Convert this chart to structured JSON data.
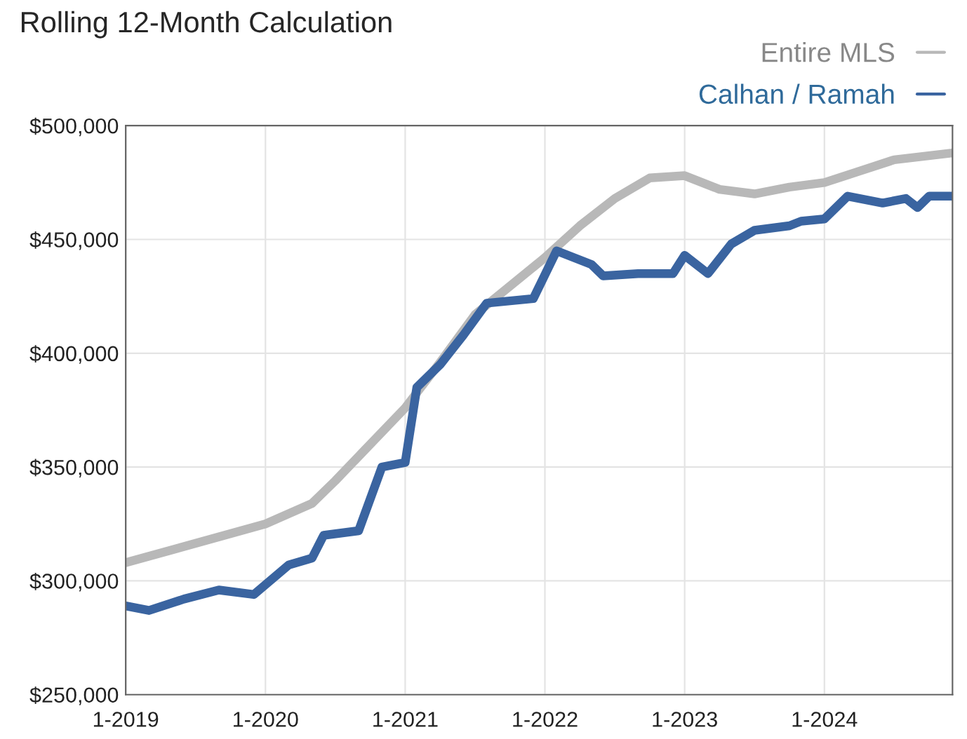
{
  "chart_data": {
    "type": "line",
    "title": "Rolling 12-Month Calculation",
    "series": [
      {
        "name": "Entire MLS",
        "color": "#b8b8b8",
        "x": [
          "2019-01",
          "2020-01",
          "2020-05",
          "2020-07",
          "2021-01",
          "2021-04",
          "2021-07",
          "2022-01",
          "2022-04",
          "2022-07",
          "2022-10",
          "2023-01",
          "2023-04",
          "2023-07",
          "2023-10",
          "2024-01",
          "2024-04",
          "2024-07",
          "2024-12"
        ],
        "values": [
          308000,
          325000,
          334000,
          344000,
          376000,
          396000,
          417000,
          442000,
          456000,
          468000,
          477000,
          478000,
          472000,
          470000,
          473000,
          475000,
          480000,
          485000,
          488000
        ]
      },
      {
        "name": "Calhan / Ramah",
        "color": "#3a64a0",
        "x": [
          "2019-01",
          "2019-03",
          "2019-06",
          "2019-09",
          "2019-12",
          "2020-03",
          "2020-05",
          "2020-06",
          "2020-09",
          "2020-11",
          "2021-01",
          "2021-02",
          "2021-04",
          "2021-06",
          "2021-08",
          "2021-12",
          "2022-02",
          "2022-05",
          "2022-06",
          "2022-09",
          "2022-12",
          "2023-01",
          "2023-03",
          "2023-05",
          "2023-07",
          "2023-10",
          "2023-11",
          "2024-01",
          "2024-03",
          "2024-06",
          "2024-08",
          "2024-09",
          "2024-10",
          "2024-12"
        ],
        "values": [
          289000,
          287000,
          292000,
          296000,
          294000,
          307000,
          310000,
          320000,
          322000,
          350000,
          352000,
          385000,
          395000,
          408000,
          422000,
          424000,
          445000,
          439000,
          434000,
          435000,
          435000,
          443000,
          435000,
          448000,
          454000,
          456000,
          458000,
          459000,
          469000,
          466000,
          468000,
          464000,
          469000,
          469000
        ]
      }
    ],
    "xlim": [
      "2019-01",
      "2024-12"
    ],
    "xticks": [
      {
        "value": "2019-01",
        "label": "1-2019"
      },
      {
        "value": "2020-01",
        "label": "1-2020"
      },
      {
        "value": "2021-01",
        "label": "1-2021"
      },
      {
        "value": "2022-01",
        "label": "1-2022"
      },
      {
        "value": "2023-01",
        "label": "1-2023"
      },
      {
        "value": "2024-01",
        "label": "1-2024"
      }
    ],
    "ylim": [
      250000,
      500000
    ],
    "yticks": [
      {
        "value": 250000,
        "label": "$250,000"
      },
      {
        "value": 300000,
        "label": "$300,000"
      },
      {
        "value": 350000,
        "label": "$350,000"
      },
      {
        "value": 400000,
        "label": "$400,000"
      },
      {
        "value": 450000,
        "label": "$450,000"
      },
      {
        "value": 500000,
        "label": "$500,000"
      }
    ],
    "grid": true,
    "legend": "top right",
    "marker": "none",
    "line_style": "solid"
  }
}
